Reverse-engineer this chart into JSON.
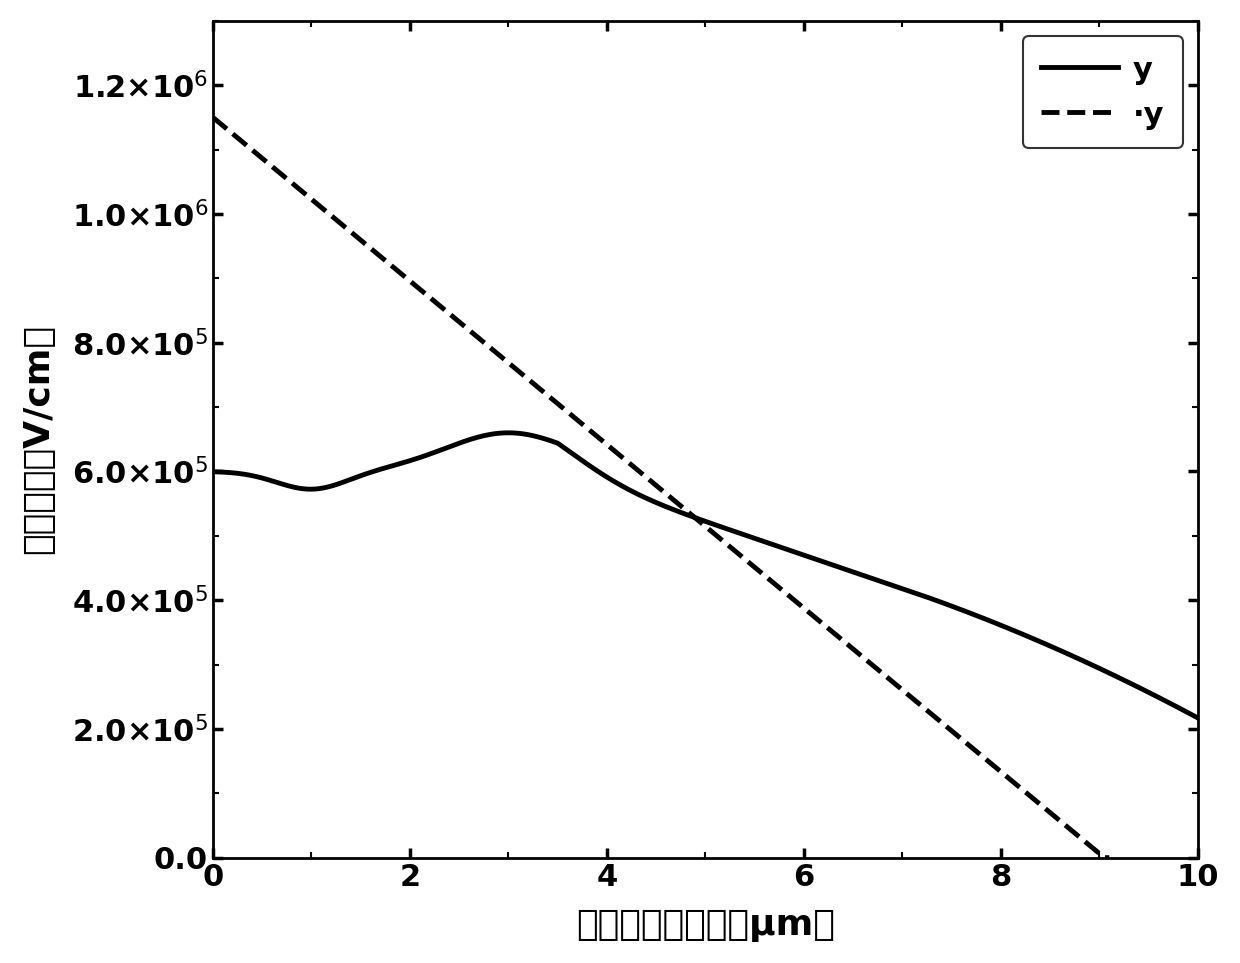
{
  "title": "",
  "xlabel": "距离表面的距离（μm）",
  "ylabel": "电场强度（V/cm）",
  "xlim": [
    0,
    10
  ],
  "ylim": [
    0,
    1300000.0
  ],
  "yticks": [
    0.0,
    200000.0,
    400000.0,
    600000.0,
    800000.0,
    1000000.0,
    1200000.0
  ],
  "xticks": [
    0,
    2,
    4,
    6,
    8,
    10
  ],
  "legend1_label": "y",
  "legend2_label": "·y",
  "line1_color": "#000000",
  "line2_color": "#000000",
  "background_color": "#ffffff",
  "solid_lw": 3.5,
  "dashed_lw": 3.5,
  "tick_fontsize": 22,
  "label_fontsize": 26,
  "legend_fontsize": 22
}
